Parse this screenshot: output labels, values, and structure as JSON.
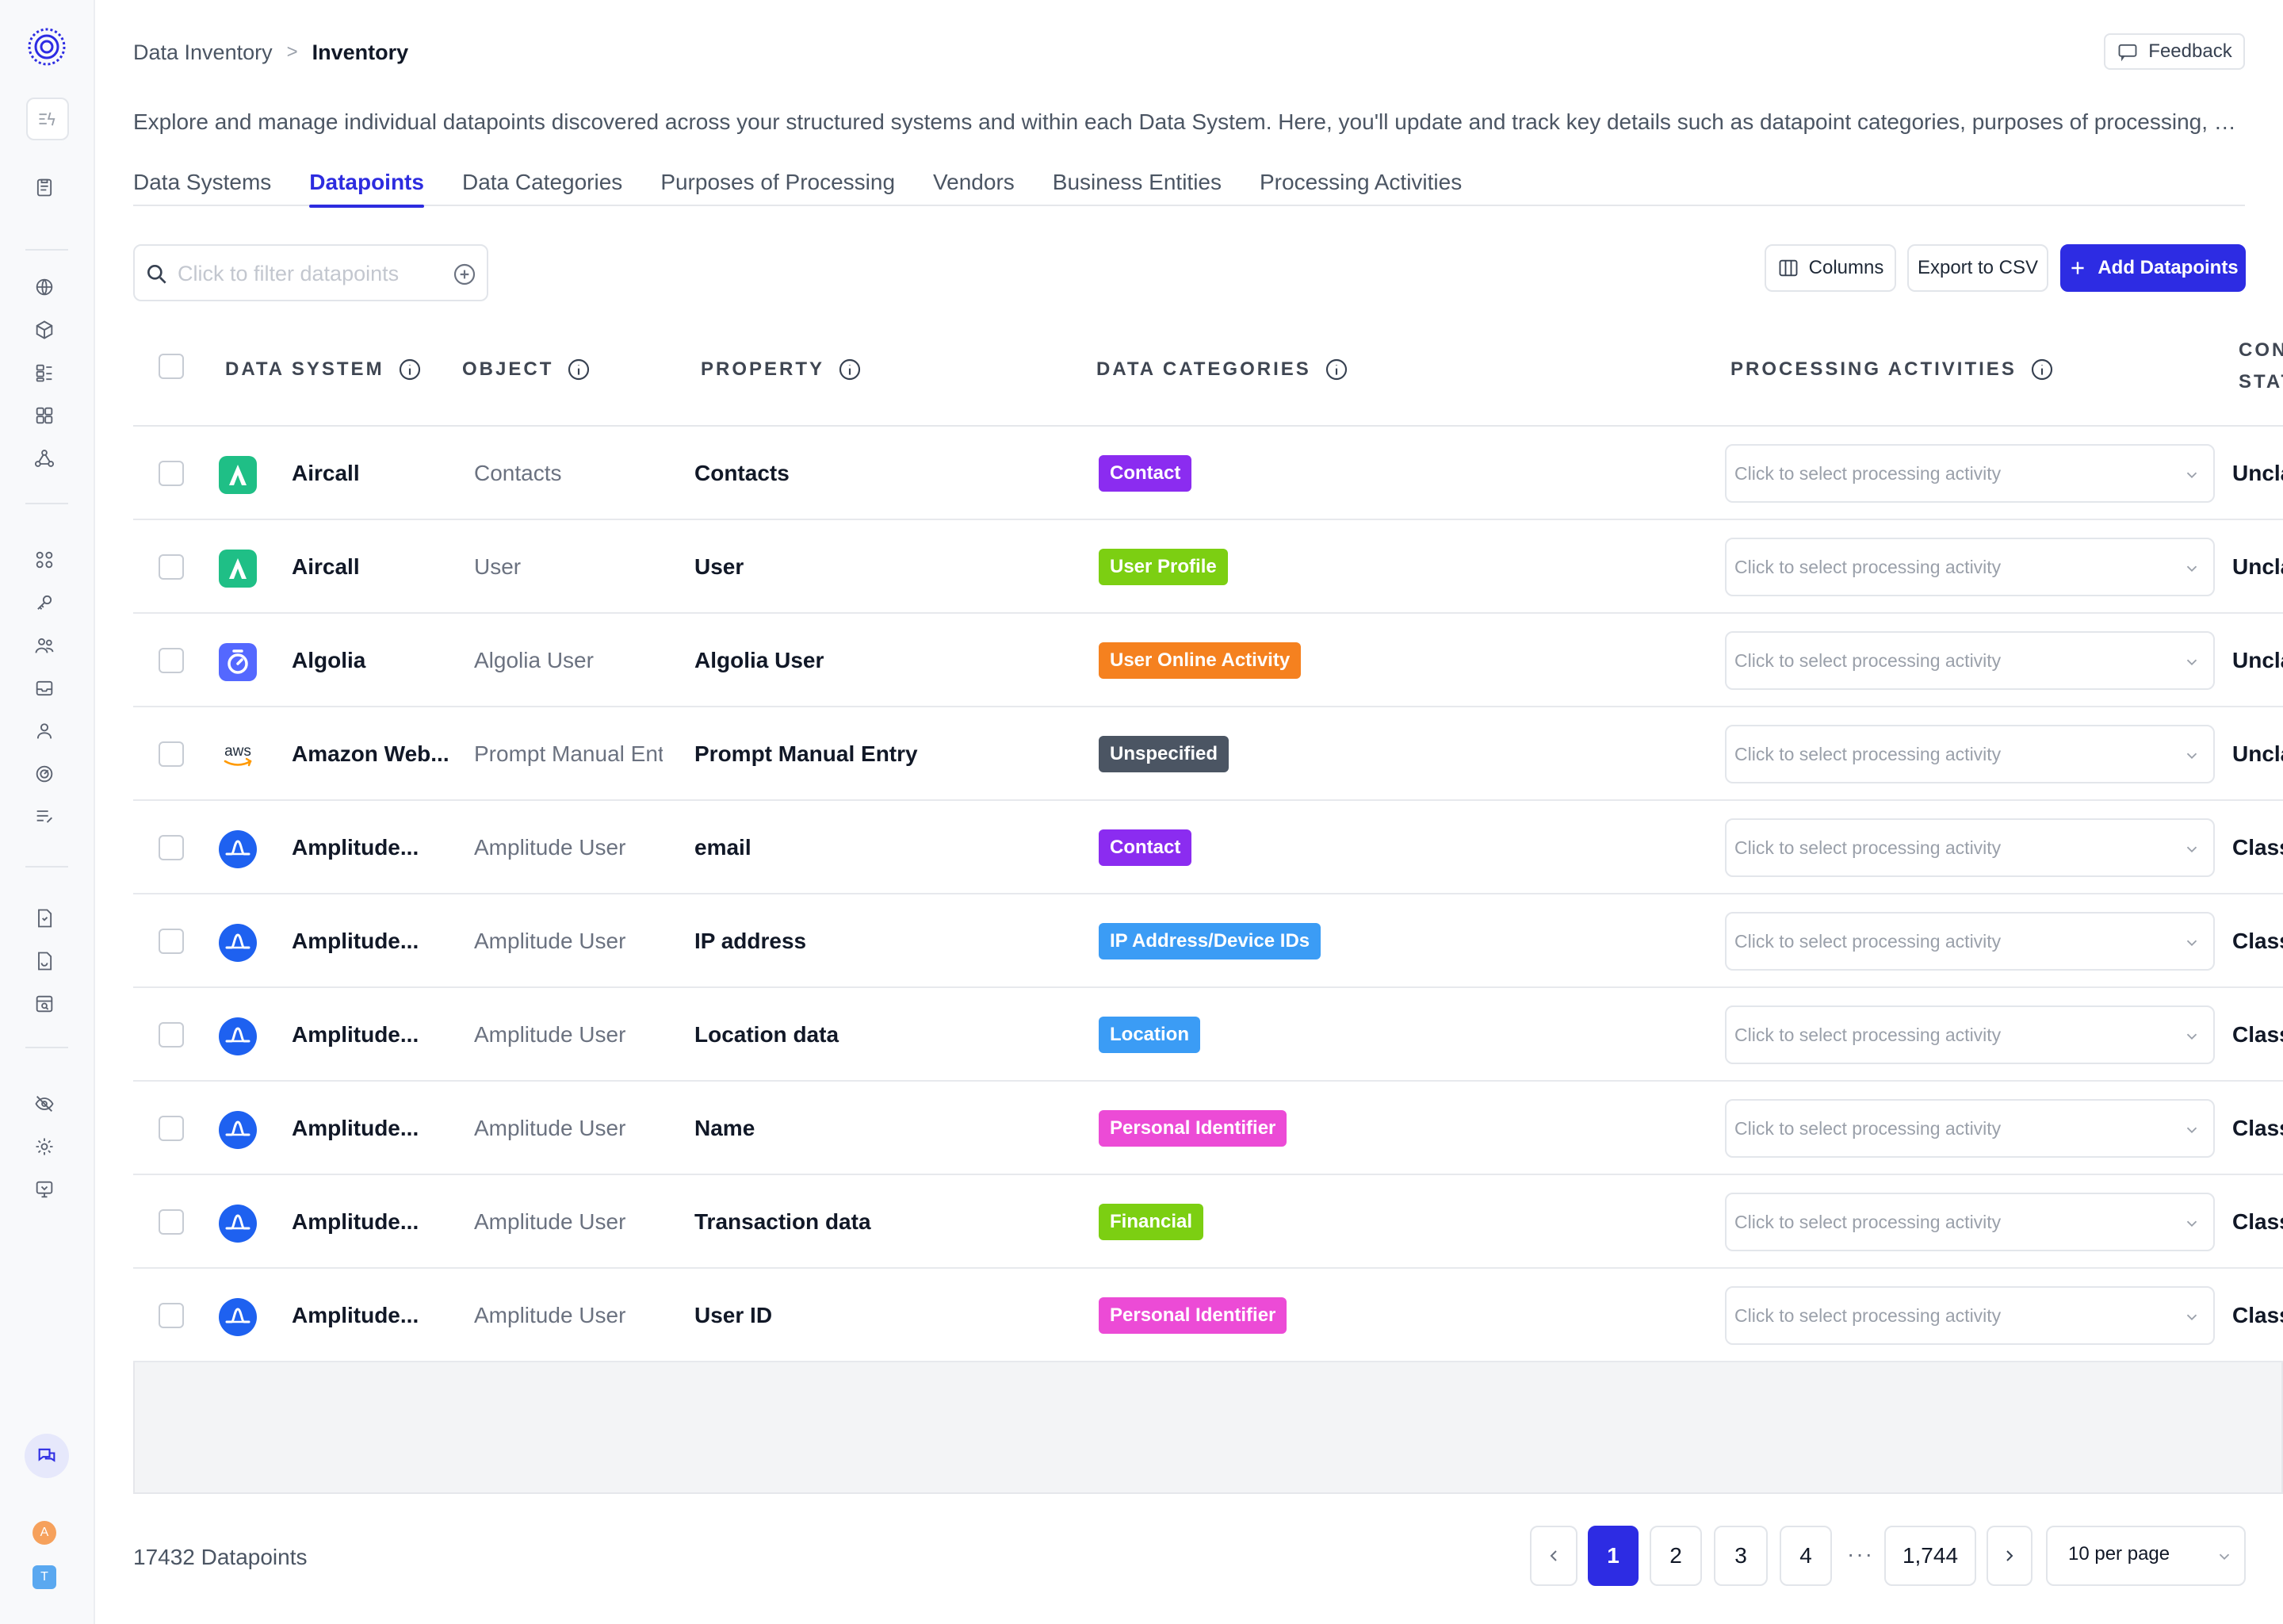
{
  "breadcrumb": {
    "root": "Data Inventory",
    "separator": ">",
    "current": "Inventory"
  },
  "header": {
    "feedback_label": "Feedback",
    "description": "Explore and manage individual datapoints discovered across your structured systems and within each Data System. Here, you'll update and track key details such as datapoint categories, purposes of processing, and whether a dat..."
  },
  "tabs": [
    "Data Systems",
    "Datapoints",
    "Data Categories",
    "Purposes of Processing",
    "Vendors",
    "Business Entities",
    "Processing Activities"
  ],
  "active_tab": "Datapoints",
  "toolbar": {
    "filter_placeholder": "Click to filter datapoints",
    "columns_label": "Columns",
    "export_label": "Export to CSV",
    "add_label": "Add Datapoints"
  },
  "columns": {
    "data_system": "DATA SYSTEM",
    "object": "OBJECT",
    "property": "PROPERTY",
    "data_categories": "DATA CATEGORIES",
    "processing_activities": "PROCESSING ACTIVITIES",
    "con_line1": "CON",
    "con_line2": "STAT"
  },
  "select_placeholder": "Click to select processing activity",
  "rows": [
    {
      "system": "Aircall",
      "object": "Contacts",
      "property": "Contacts",
      "category": "Contact",
      "status": "Uncla"
    },
    {
      "system": "Aircall",
      "object": "User",
      "property": "User",
      "category": "User Profile",
      "status": "Uncla"
    },
    {
      "system": "Algolia",
      "object": "Algolia User",
      "property": "Algolia User",
      "category": "User Online Activity",
      "status": "Uncla"
    },
    {
      "system": "Amazon Web...",
      "object": "Prompt Manual Ent",
      "property": "Prompt Manual Entry",
      "category": "Unspecified",
      "status": "Uncla"
    },
    {
      "system": "Amplitude...",
      "object": "Amplitude User",
      "property": "email",
      "category": "Contact",
      "status": "Class"
    },
    {
      "system": "Amplitude...",
      "object": "Amplitude User",
      "property": "IP address",
      "category": "IP Address/Device IDs",
      "status": "Class"
    },
    {
      "system": "Amplitude...",
      "object": "Amplitude User",
      "property": "Location data",
      "category": "Location",
      "status": "Class"
    },
    {
      "system": "Amplitude...",
      "object": "Amplitude User",
      "property": "Name",
      "category": "Personal Identifier",
      "status": "Class"
    },
    {
      "system": "Amplitude...",
      "object": "Amplitude User",
      "property": "Transaction data",
      "category": "Financial",
      "status": "Class"
    },
    {
      "system": "Amplitude...",
      "object": "Amplitude User",
      "property": "User ID",
      "category": "Personal Identifier",
      "status": "Class"
    }
  ],
  "system_logos": [
    "aircall-logo",
    "aircall-logo",
    "algolia-logo",
    "aws-logo",
    "amplitude-logo",
    "amplitude-logo",
    "amplitude-logo",
    "amplitude-logo",
    "amplitude-logo",
    "amplitude-logo"
  ],
  "aws_logo_text": "aws",
  "category_colors": {
    "Contact": "#8b2cf0",
    "User Profile": "#7ccf12",
    "User Online Activity": "#f5811f",
    "Unspecified": "#4b5563",
    "IP Address/Device IDs": "#3b9cf5",
    "Location": "#3b9cf5",
    "Personal Identifier": "#ec4bd6",
    "Financial": "#7ccf12"
  },
  "footer": {
    "total": "17432 Datapoints",
    "pages": [
      "1",
      "2",
      "3",
      "4"
    ],
    "ellipsis": "···",
    "last_page": "1,744",
    "current_page": 1,
    "per_page": "10 per page"
  },
  "avatars": [
    "A",
    "T"
  ],
  "accent_color": "#2d2ce3"
}
